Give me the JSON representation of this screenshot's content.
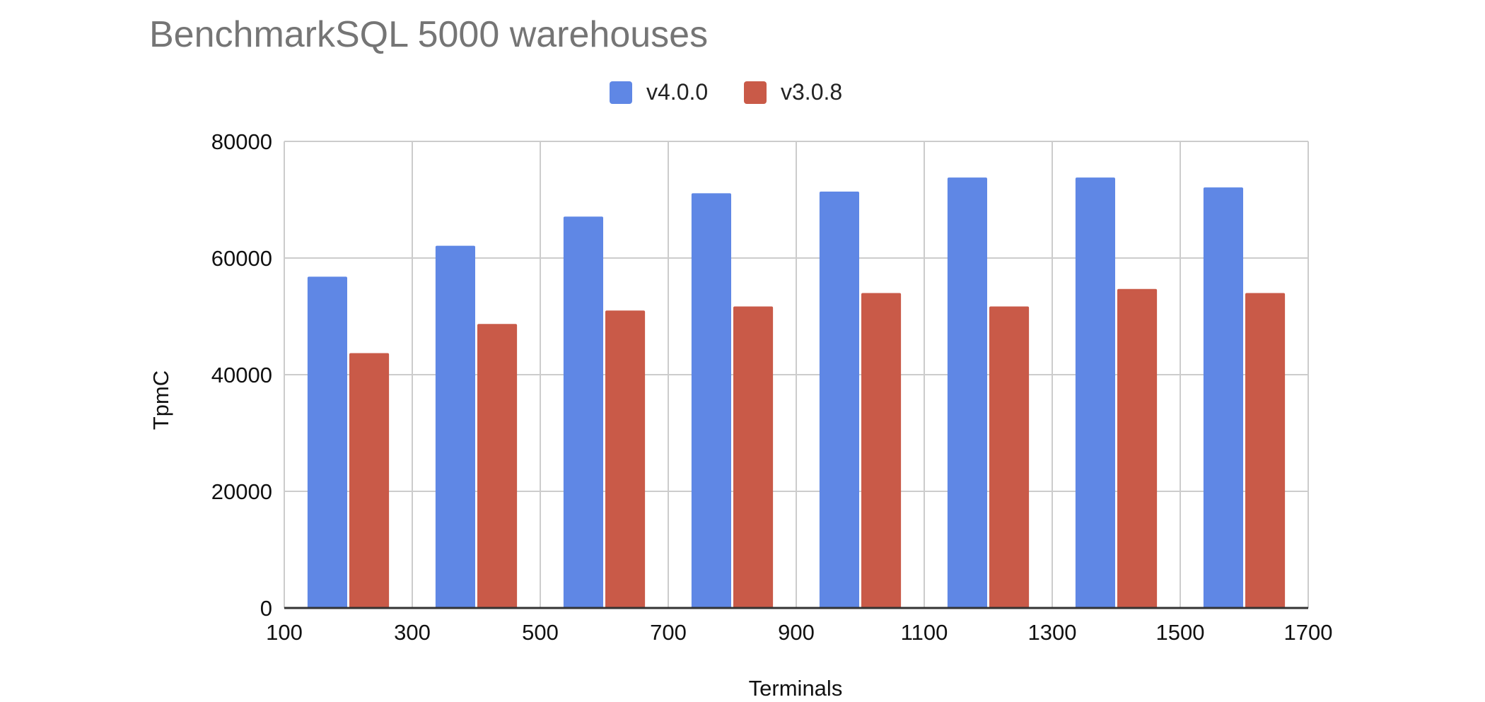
{
  "chart_data": {
    "type": "bar",
    "title": "BenchmarkSQL 5000 warehouses",
    "xlabel": "Terminals",
    "ylabel": "TpmC",
    "x_ticks": [
      "100",
      "300",
      "500",
      "700",
      "900",
      "1100",
      "1300",
      "1500",
      "1700"
    ],
    "y_ticks": [
      "0",
      "20000",
      "40000",
      "60000",
      "80000"
    ],
    "xlim": [
      100,
      1700
    ],
    "ylim": [
      0,
      80000
    ],
    "x": [
      200,
      400,
      600,
      800,
      1000,
      1200,
      1400,
      1600
    ],
    "series": [
      {
        "name": "v4.0.0",
        "color": "#5f87e5",
        "values": [
          56800,
          62100,
          67100,
          71100,
          71400,
          73800,
          73800,
          72100
        ]
      },
      {
        "name": "v3.0.8",
        "color": "#c95a48",
        "values": [
          43700,
          48700,
          51000,
          51700,
          54000,
          51700,
          54700,
          54000
        ]
      }
    ],
    "legend_position": "top-center",
    "grid": true
  }
}
